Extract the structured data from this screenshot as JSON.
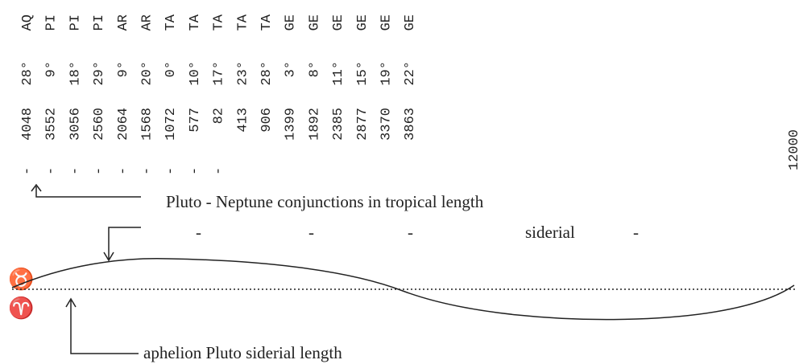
{
  "columns": [
    {
      "minus": "-",
      "year": "4048",
      "degree": "28°",
      "sign": "AQ"
    },
    {
      "minus": "-",
      "year": "3552",
      "degree": "9°",
      "sign": "PI"
    },
    {
      "minus": "-",
      "year": "3056",
      "degree": "18°",
      "sign": "PI"
    },
    {
      "minus": "-",
      "year": "2560",
      "degree": "29°",
      "sign": "PI"
    },
    {
      "minus": "-",
      "year": "2064",
      "degree": "9°",
      "sign": "AR"
    },
    {
      "minus": "-",
      "year": "1568",
      "degree": "20°",
      "sign": "AR"
    },
    {
      "minus": "-",
      "year": "1072",
      "degree": "0°",
      "sign": "TA"
    },
    {
      "minus": "-",
      "year": "577",
      "degree": "10°",
      "sign": "TA"
    },
    {
      "minus": "-",
      "year": "82",
      "degree": "17°",
      "sign": "TA"
    },
    {
      "year": "413",
      "degree": "23°",
      "sign": "TA"
    },
    {
      "year": "906",
      "degree": "28°",
      "sign": "TA"
    },
    {
      "year": "1399",
      "degree": "3°",
      "sign": "GE"
    },
    {
      "year": "1892",
      "degree": "8°",
      "sign": "GE"
    },
    {
      "year": "2385",
      "degree": "11°",
      "sign": "GE"
    },
    {
      "year": "2877",
      "degree": "15°",
      "sign": "GE"
    },
    {
      "year": "3370",
      "degree": "19°",
      "sign": "GE"
    },
    {
      "year": "3863",
      "degree": "22°",
      "sign": "GE"
    }
  ],
  "axis_end": "12000",
  "labels": {
    "tropical": "Pluto  -  Neptune  conjunctions  in  tropical  length",
    "siderial_dashes": [
      "-",
      "-",
      "-"
    ],
    "siderial": "siderial",
    "siderial_dash_end": "-",
    "aphelion": "aphelion Pluto siderial length",
    "taurus": "♉",
    "aries": "♈"
  }
}
